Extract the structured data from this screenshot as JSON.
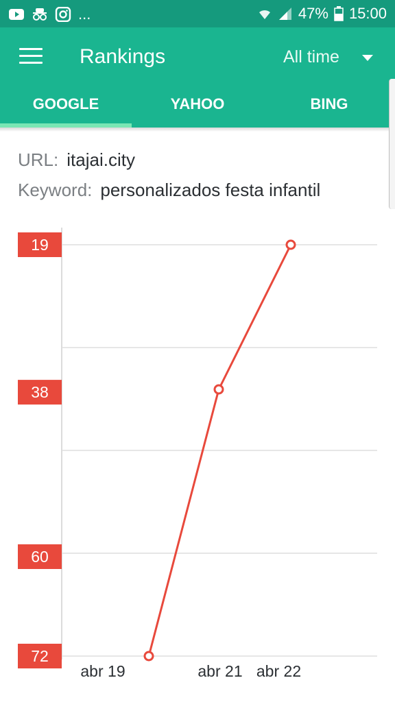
{
  "status_bar": {
    "left_icons": [
      "youtube-icon",
      "spy-icon",
      "instagram-icon"
    ],
    "overflow": "...",
    "battery": "47%",
    "time": "15:00"
  },
  "app_bar": {
    "title": "Rankings",
    "period": "All time",
    "tabs": [
      {
        "label": "GOOGLE",
        "selected": true
      },
      {
        "label": "YAHOO",
        "selected": false
      },
      {
        "label": "BING",
        "selected": false
      }
    ]
  },
  "info": {
    "url_label": "URL:",
    "url_value": "itajai.city",
    "keyword_label": "Keyword:",
    "keyword_value": "personalizados festa infantil"
  },
  "colors": {
    "status_bar": "#159a7d",
    "app_bar": "#1ab590",
    "tab_indicator": "#7ae6b4",
    "series": "#e8493c"
  },
  "chart_data": {
    "type": "line",
    "x_ticks": [
      "abr 19",
      "abr 21",
      "abr 22"
    ],
    "y_ticks": [
      19,
      38,
      60,
      72
    ],
    "y_inverted": true,
    "grid": true,
    "series": [
      {
        "values": [
          {
            "x": "abr 20",
            "y": 72
          },
          {
            "x": "abr 21",
            "y": 38
          },
          {
            "x": "abr 22",
            "y": 19
          }
        ]
      }
    ]
  }
}
